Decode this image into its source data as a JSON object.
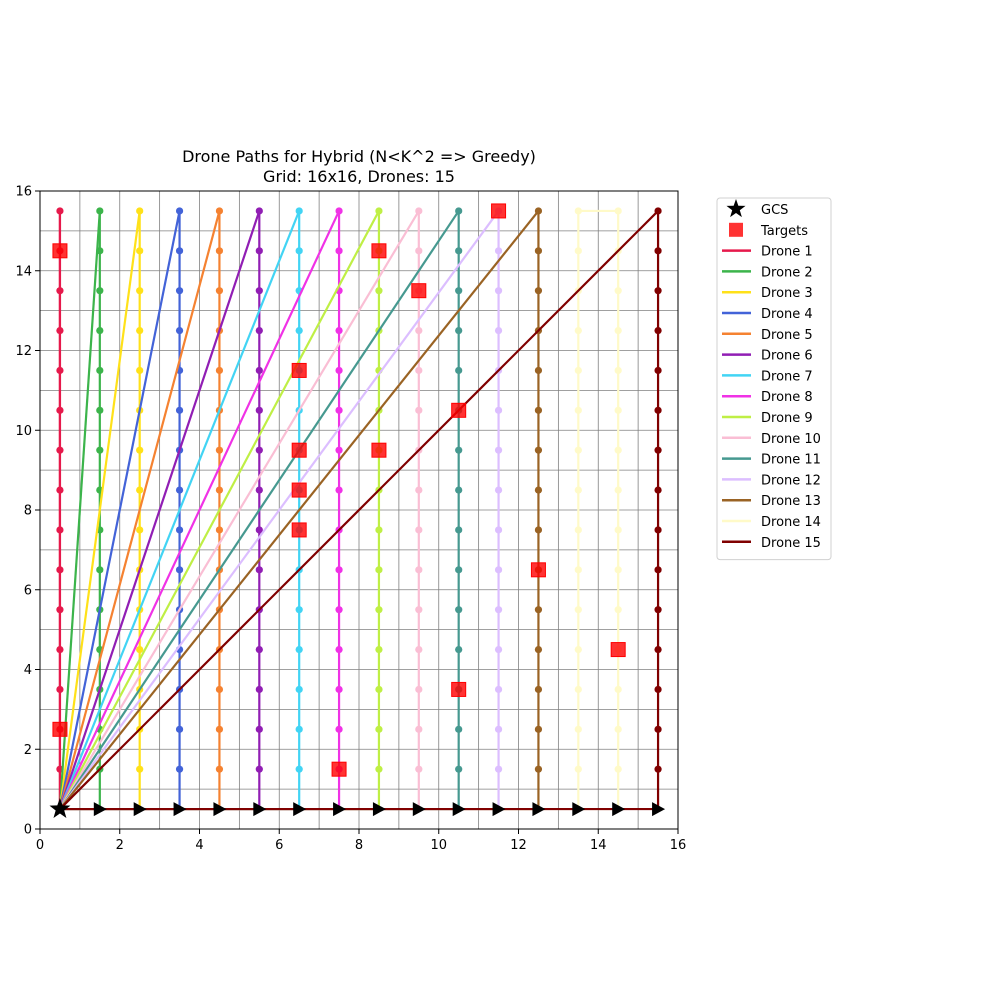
{
  "chart_data": {
    "type": "line",
    "title": "Drone Paths for Hybrid (N<K^2 => Greedy)",
    "subtitle": "Grid: 16x16, Drones: 15",
    "xlabel": "",
    "ylabel": "",
    "xlim": [
      0,
      16
    ],
    "ylim": [
      0,
      16
    ],
    "xticks": [
      0,
      2,
      4,
      6,
      8,
      10,
      12,
      14,
      16
    ],
    "yticks": [
      0,
      2,
      4,
      6,
      8,
      10,
      12,
      14,
      16
    ],
    "grid": true,
    "grid_step": 1,
    "legend_position": "outside upper right",
    "gcs": {
      "label": "GCS",
      "x": 0.5,
      "y": 0.5,
      "color": "#000000"
    },
    "targets": {
      "label": "Targets",
      "color": "#ff0000",
      "points": [
        [
          0.5,
          14.5
        ],
        [
          0.5,
          2.5
        ],
        [
          6.5,
          11.5
        ],
        [
          6.5,
          9.5
        ],
        [
          6.5,
          8.5
        ],
        [
          6.5,
          7.5
        ],
        [
          7.5,
          1.5
        ],
        [
          8.5,
          14.5
        ],
        [
          8.5,
          9.5
        ],
        [
          9.5,
          13.5
        ],
        [
          10.5,
          10.5
        ],
        [
          10.5,
          3.5
        ],
        [
          11.5,
          15.5
        ],
        [
          12.5,
          6.5
        ],
        [
          14.5,
          4.5
        ]
      ]
    },
    "ground_y": 0.5,
    "ground_arrows_x": [
      1.5,
      2.5,
      3.5,
      4.5,
      5.5,
      6.5,
      7.5,
      8.5,
      9.5,
      10.5,
      11.5,
      12.5,
      13.5,
      14.5,
      15.5
    ],
    "series": [
      {
        "name": "Drone 1",
        "color": "#e6194b",
        "columns": [
          0.5
        ],
        "top": 15.5,
        "ymin": 1.5,
        "direct": false
      },
      {
        "name": "Drone 2",
        "color": "#3cb44b",
        "columns": [
          1.5
        ],
        "top": 15.5,
        "ymin": 1.5,
        "direct": true
      },
      {
        "name": "Drone 3",
        "color": "#ffe119",
        "columns": [
          2.5
        ],
        "top": 15.5,
        "ymin": 1.5,
        "direct": true
      },
      {
        "name": "Drone 4",
        "color": "#4363d8",
        "columns": [
          3.5
        ],
        "top": 15.5,
        "ymin": 1.5,
        "direct": true
      },
      {
        "name": "Drone 5",
        "color": "#f58231",
        "columns": [
          4.5
        ],
        "top": 15.5,
        "ymin": 1.5,
        "direct": true
      },
      {
        "name": "Drone 6",
        "color": "#911eb4",
        "columns": [
          5.5
        ],
        "top": 15.5,
        "ymin": 1.5,
        "direct": true
      },
      {
        "name": "Drone 7",
        "color": "#42d4f4",
        "columns": [
          6.5
        ],
        "top": 15.5,
        "ymin": 1.5,
        "direct": true
      },
      {
        "name": "Drone 8",
        "color": "#f032e6",
        "columns": [
          7.5
        ],
        "top": 15.5,
        "ymin": 1.5,
        "direct": true
      },
      {
        "name": "Drone 9",
        "color": "#bfef45",
        "columns": [
          8.5
        ],
        "top": 15.5,
        "ymin": 1.5,
        "direct": true
      },
      {
        "name": "Drone 10",
        "color": "#fabed4",
        "columns": [
          9.5
        ],
        "top": 15.5,
        "ymin": 1.5,
        "direct": true
      },
      {
        "name": "Drone 11",
        "color": "#469990",
        "columns": [
          10.5
        ],
        "top": 15.5,
        "ymin": 1.5,
        "direct": true
      },
      {
        "name": "Drone 12",
        "color": "#dcbeff",
        "columns": [
          11.5
        ],
        "top": 15.5,
        "ymin": 1.5,
        "direct": true
      },
      {
        "name": "Drone 13",
        "color": "#9a6324",
        "columns": [
          12.5
        ],
        "top": 15.5,
        "ymin": 1.5,
        "direct": true
      },
      {
        "name": "Drone 14",
        "color": "#fffac8",
        "columns": [
          13.5,
          14.5
        ],
        "top": 15.5,
        "ymin": 1.5,
        "direct": false
      },
      {
        "name": "Drone 15",
        "color": "#800000",
        "columns": [
          15.5
        ],
        "top": 15.5,
        "ymin": 1.5,
        "direct": true
      }
    ]
  }
}
